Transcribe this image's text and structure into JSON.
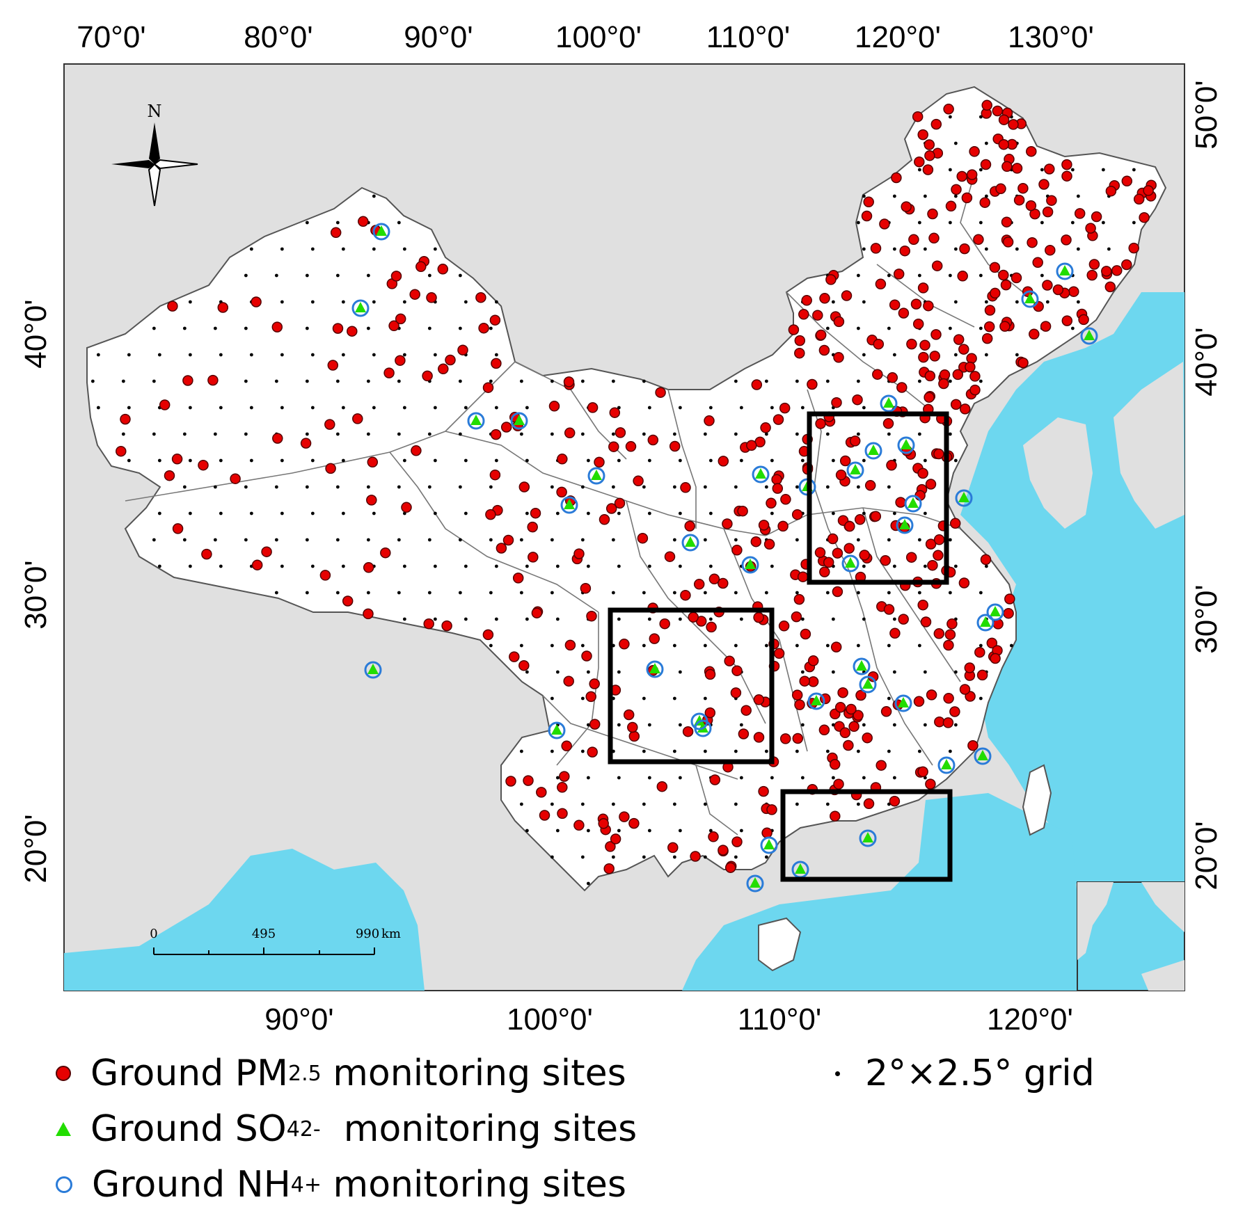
{
  "map": {
    "top_axis_labels": [
      "70°0'",
      "80°0'",
      "90°0'",
      "100°0'",
      "110°0'",
      "120°0'",
      "130°0'"
    ],
    "bottom_axis_labels": [
      "90°0'",
      "100°0'",
      "110°0'",
      "120°0'"
    ],
    "left_axis_labels": [
      "40°0'",
      "30°0'",
      "20°0'"
    ],
    "right_axis_labels": [
      "50°0'",
      "40°0'",
      "30°0'",
      "20°0'"
    ],
    "north_label": "N",
    "scale_bar": {
      "labels": [
        "0",
        "495",
        "990",
        "km"
      ]
    },
    "colors": {
      "land_outside": "#e0e0e0",
      "china_land": "#ffffff",
      "sea": "#6dd7ef",
      "boundary": "#555555",
      "pm25_site": "#e60000",
      "so4_site": "#22dd00",
      "nh4_site": "#2a7bd8",
      "grid_point": "#000000",
      "highlight_box": "#000000"
    }
  },
  "legend": {
    "pm25": {
      "prefix": "Ground PM",
      "sub": "2.5",
      "suffix": " monitoring sites"
    },
    "so4": {
      "prefix": "Ground SO",
      "sub": "4",
      "sup": "2-",
      "suffix": "  monitoring sites"
    },
    "nh4": {
      "prefix": "Ground NH",
      "sub": "4",
      "sup": "+",
      "suffix": " monitoring sites"
    },
    "grid": {
      "label": "2°×2.5° grid"
    }
  }
}
